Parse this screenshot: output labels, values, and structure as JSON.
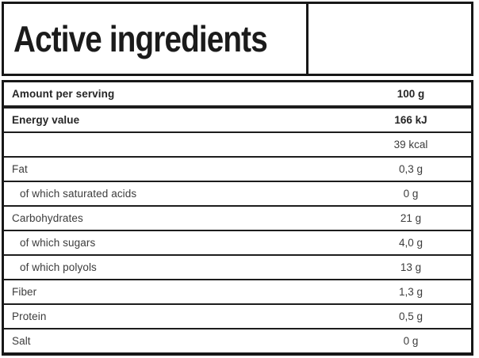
{
  "title": "Active ingredients",
  "table": {
    "rows": [
      {
        "label": "Amount per serving",
        "value": "100 g",
        "bold": true,
        "indent": false
      },
      {
        "label": "Energy value",
        "value": "166 kJ",
        "bold": true,
        "indent": false
      },
      {
        "label": "",
        "value": "39 kcal",
        "bold": false,
        "indent": false
      },
      {
        "label": "Fat",
        "value": "0,3 g",
        "bold": false,
        "indent": false
      },
      {
        "label": "of which saturated acids",
        "value": "0 g",
        "bold": false,
        "indent": true
      },
      {
        "label": "Carbohydrates",
        "value": "21 g",
        "bold": false,
        "indent": false
      },
      {
        "label": "of which sugars",
        "value": "4,0 g",
        "bold": false,
        "indent": true
      },
      {
        "label": "of which polyols",
        "value": "13 g",
        "bold": false,
        "indent": true
      },
      {
        "label": "Fiber",
        "value": "1,3 g",
        "bold": false,
        "indent": false
      },
      {
        "label": "Protein",
        "value": "0,5 g",
        "bold": false,
        "indent": false
      },
      {
        "label": "Salt",
        "value": "0 g",
        "bold": false,
        "indent": false
      }
    ]
  },
  "colors": {
    "border": "#171717",
    "text": "#3c3c3c",
    "bold_text": "#262626",
    "background": "#ffffff"
  }
}
